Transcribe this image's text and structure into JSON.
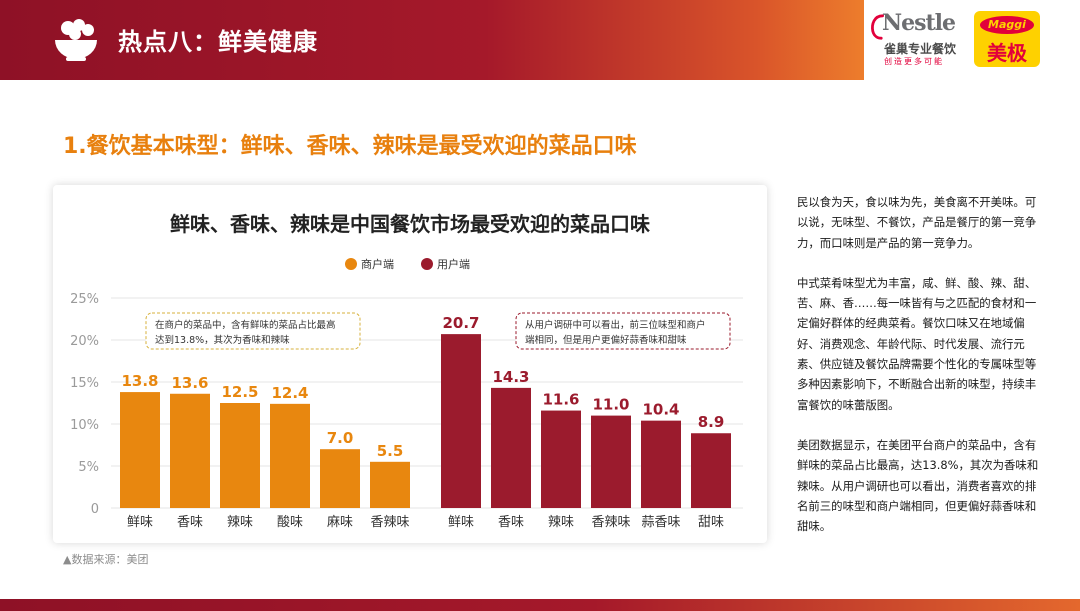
{
  "header": {
    "title": "热点八：鲜美健康"
  },
  "logos": {
    "nestle_word": "Nestle",
    "nestle_cn": "雀巢专业餐饮",
    "nestle_tagline": "创造更多可能",
    "maggi_word": "Maggi",
    "maggi_cn": "美极"
  },
  "section_title": "1.餐饮基本味型：鲜味、香味、辣味是最受欢迎的菜品口味",
  "chart_data": {
    "type": "bar",
    "title": "鲜味、香味、辣味是中国餐饮市场最受欢迎的菜品口味",
    "ylim": [
      0,
      25
    ],
    "yticks": [
      "0",
      "5%",
      "10%",
      "15%",
      "20%",
      "25%"
    ],
    "grid": true,
    "legend": "top-center",
    "series": [
      {
        "name": "商户端",
        "color": "#e8870f",
        "categories": [
          "鲜味",
          "香味",
          "辣味",
          "酸味",
          "麻味",
          "香辣味"
        ],
        "values": [
          13.8,
          13.6,
          12.5,
          12.4,
          7.0,
          5.5
        ],
        "labels": [
          "13.8",
          "13.6",
          "12.5",
          "12.4",
          "7.0",
          "5.5"
        ]
      },
      {
        "name": "用户端",
        "color": "#9b1b2d",
        "categories": [
          "鲜味",
          "香味",
          "辣味",
          "香辣味",
          "蒜香味",
          "甜味"
        ],
        "values": [
          20.7,
          14.3,
          11.6,
          11.0,
          10.4,
          8.9
        ],
        "labels": [
          "20.7",
          "14.3",
          "11.6",
          "11.0",
          "10.4",
          "8.9"
        ]
      }
    ],
    "annotations": [
      {
        "series": "商户端",
        "line1": "在商户的菜品中，含有鲜味的菜品占比最高",
        "line2": "达到13.8%，其次为香味和辣味"
      },
      {
        "series": "用户端",
        "line1": "从用户调研中可以看出，前三位味型和商户",
        "line2": "端相同，但是用户更偏好蒜香味和甜味"
      }
    ]
  },
  "source": "▲数据来源：美团",
  "body_paragraphs": [
    "民以食为天，食以味为先，美食离不开美味。可以说，无味型、不餐饮，产品是餐厅的第一竞争力，而口味则是产品的第一竞争力。",
    "中式菜肴味型尤为丰富，咸、鲜、酸、辣、甜、苦、麻、香……每一味皆有与之匹配的食材和一定偏好群体的经典菜肴。餐饮口味又在地域偏好、消费观念、年龄代际、时代发展、流行元素、供应链及餐饮品牌需要个性化的专属味型等多种因素影响下，不断融合出新的味型，持续丰富餐饮的味蕾版图。",
    "美团数据显示，在美团平台商户的菜品中，含有鲜味的菜品占比最高，达13.8%，其次为香味和辣味。从用户调研也可以看出，消费者喜欢的排名前三的味型和商户端相同，但更偏好蒜香味和甜味。"
  ]
}
